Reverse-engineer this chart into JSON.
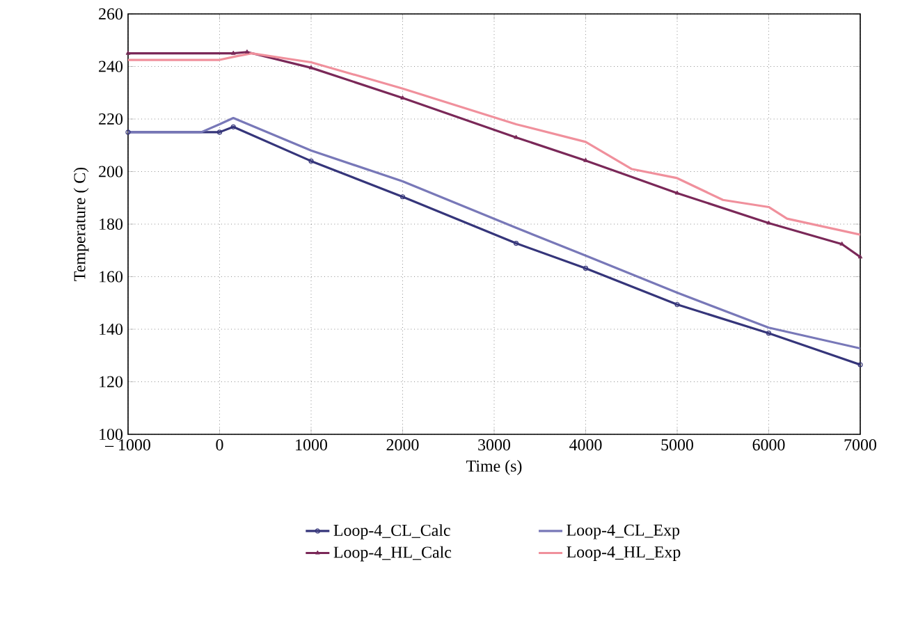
{
  "chart_data": {
    "type": "line",
    "xlabel": "Time (s)",
    "ylabel": "Temperature ( C)",
    "xlim": [
      -1000,
      7000
    ],
    "xticks": [
      {
        "value": -1000,
        "label": "– 1000"
      },
      0,
      1000,
      2000,
      3000,
      4000,
      5000,
      6000,
      7000
    ],
    "ylim": [
      100,
      260
    ],
    "yticks": [
      100,
      120,
      140,
      160,
      180,
      200,
      220,
      240,
      260
    ],
    "grid": true,
    "legend": "bottom",
    "series": [
      {
        "name": "Loop-4_CL_Calc",
        "color": "#35357a",
        "marker": "circle",
        "x": [
          -1000,
          0,
          150,
          1000,
          2000,
          3240,
          4000,
          5000,
          6000,
          7000
        ],
        "values": [
          215,
          215,
          217,
          204,
          190.4,
          172.7,
          163.2,
          149.4,
          138.5,
          126.5
        ]
      },
      {
        "name": "Loop-4_CL_Exp",
        "color": "#7878b8",
        "marker": "none",
        "x": [
          -1000,
          -200,
          0,
          150,
          1000,
          2000,
          3240,
          4000,
          5000,
          6000,
          7000
        ],
        "values": [
          215,
          215,
          218,
          220.4,
          208,
          196.3,
          178.6,
          168,
          153.9,
          140.6,
          132.7
        ]
      },
      {
        "name": "Loop-4_HL_Calc",
        "color": "#7a2858",
        "marker": "triangle",
        "x": [
          -1000,
          150,
          300,
          1000,
          2000,
          3240,
          4000,
          5000,
          6000,
          6800,
          7000
        ],
        "values": [
          245,
          245,
          245.5,
          239.5,
          228,
          213,
          204.2,
          191.8,
          180.4,
          172.4,
          167.5
        ]
      },
      {
        "name": "Loop-4_HL_Exp",
        "color": "#f0909c",
        "marker": "none",
        "x": [
          -1000,
          0,
          200,
          350,
          1000,
          2000,
          3240,
          4000,
          4500,
          5000,
          5500,
          6000,
          6200,
          7000
        ],
        "values": [
          242.5,
          242.5,
          244,
          245,
          241.6,
          231.6,
          218,
          211.3,
          201,
          197.5,
          189.2,
          186.5,
          182.1,
          176
        ]
      }
    ]
  }
}
